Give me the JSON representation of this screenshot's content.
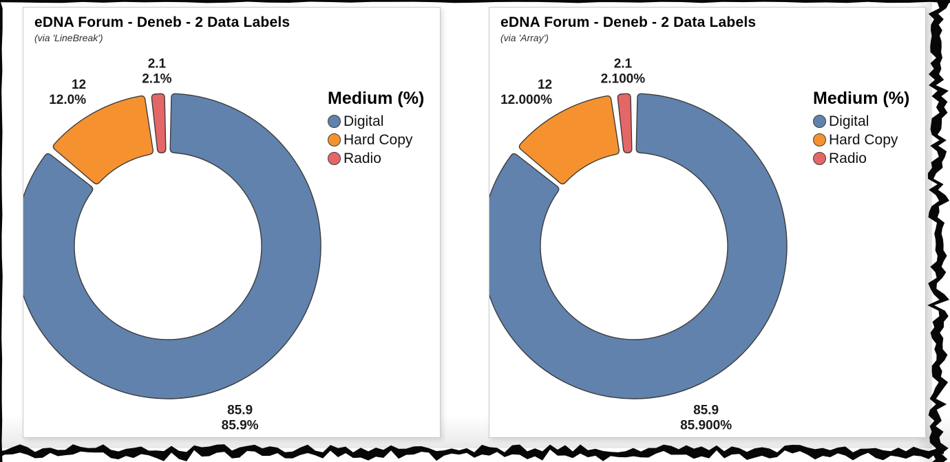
{
  "page": {
    "background": "#ffffff",
    "torn_edge_color": "#070707",
    "card_border_color": "#c9c9c9"
  },
  "chart_data": [
    {
      "type": "pie",
      "subtype": "donut",
      "title": "eDNA Forum - Deneb - 2 Data Labels",
      "subtitle": "(via 'LineBreak')",
      "legend_title": "Medium (%)",
      "legend_position": "right",
      "categories": [
        "Digital",
        "Hard Copy",
        "Radio"
      ],
      "values": [
        85.9,
        12,
        2.1
      ],
      "colors": [
        "#6182AD",
        "#F5922F",
        "#E56667"
      ],
      "stroke_color": "#3C3C3C",
      "data_labels": [
        [
          "85.9",
          "85.9%"
        ],
        [
          "12",
          "12.0%"
        ],
        [
          "2.1",
          "2.1%"
        ]
      ],
      "inner_radius_ratio": 0.6,
      "start_angle_deg": 0,
      "direction": "clockwise",
      "grid": false
    },
    {
      "type": "pie",
      "subtype": "donut",
      "title": "eDNA Forum - Deneb - 2 Data Labels",
      "subtitle": "(via 'Array')",
      "legend_title": "Medium (%)",
      "legend_position": "right",
      "categories": [
        "Digital",
        "Hard Copy",
        "Radio"
      ],
      "values": [
        85.9,
        12,
        2.1
      ],
      "colors": [
        "#6182AD",
        "#F5922F",
        "#E56667"
      ],
      "stroke_color": "#3C3C3C",
      "data_labels": [
        [
          "85.9",
          "85.900%"
        ],
        [
          "12",
          "12.000%"
        ],
        [
          "2.1",
          "2.100%"
        ]
      ],
      "inner_radius_ratio": 0.6,
      "start_angle_deg": 0,
      "direction": "clockwise",
      "grid": false
    }
  ]
}
